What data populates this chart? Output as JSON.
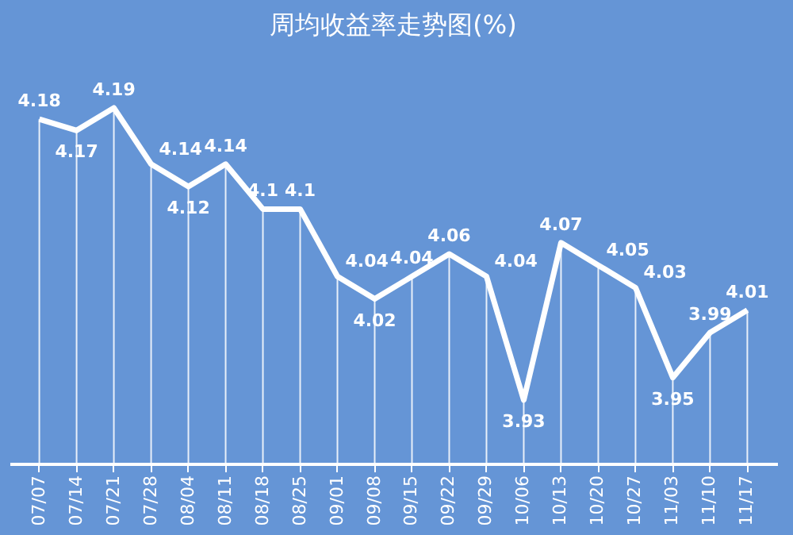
{
  "chart_data": {
    "type": "line",
    "title": "周均收益率走势图(%)",
    "categories": [
      "07/07",
      "07/14",
      "07/21",
      "07/28",
      "08/04",
      "08/11",
      "08/18",
      "08/25",
      "09/01",
      "09/08",
      "09/15",
      "09/22",
      "09/29",
      "10/06",
      "10/13",
      "10/20",
      "10/27",
      "11/03",
      "11/10",
      "11/17"
    ],
    "series": [
      {
        "color": "#ffffff",
        "values": [
          4.18,
          4.17,
          4.19,
          4.14,
          4.12,
          4.14,
          4.1,
          4.1,
          4.04,
          4.02,
          4.04,
          4.06,
          4.04,
          3.93,
          4.07,
          4.05,
          4.03,
          3.95,
          3.99,
          4.01
        ]
      }
    ],
    "data_labels": true,
    "grid": "x",
    "marker": "none",
    "line_style": "solid"
  }
}
